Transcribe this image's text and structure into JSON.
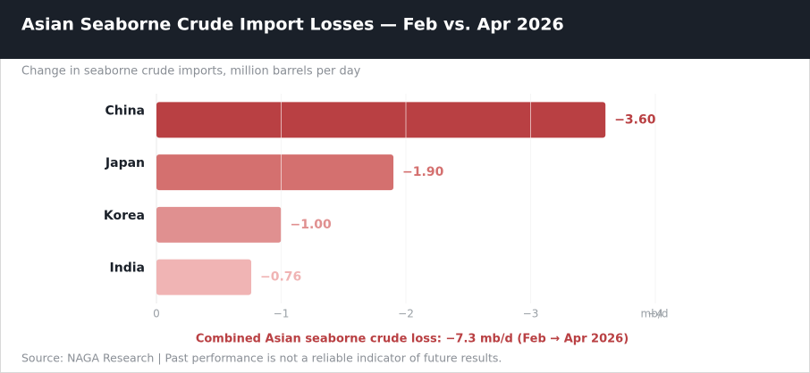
{
  "chart_data": {
    "type": "bar",
    "orientation": "horizontal",
    "title": "Asian Seaborne Crude Import Losses — Feb vs. Apr 2026",
    "subtitle": "Change in seaborne crude imports, million barrels per day",
    "categories": [
      "China",
      "Japan",
      "Korea",
      "India"
    ],
    "values": [
      -3.6,
      -1.9,
      -1.0,
      -0.76
    ],
    "value_labels": [
      "−3.60",
      "−1.90",
      "−1.00",
      "−0.76"
    ],
    "colors": [
      "#b94043",
      "#d4706f",
      "#e09090",
      "#f0b4b4"
    ],
    "xlim": [
      0,
      -4
    ],
    "xticks": [
      0,
      {
        "value": -1,
        "label": "−1"
      },
      {
        "value": -2,
        "label": "−2"
      },
      {
        "value": -3,
        "label": "−3"
      },
      {
        "value": -4,
        "label": "−4"
      }
    ],
    "xlabel": "mb/d",
    "grid": true,
    "annotation": "Combined Asian seaborne crude loss:  −7.3 mb/d  (Feb → Apr 2026)",
    "source": "Source: NAGA Research  |  Past performance is not a reliable indicator of future results."
  }
}
